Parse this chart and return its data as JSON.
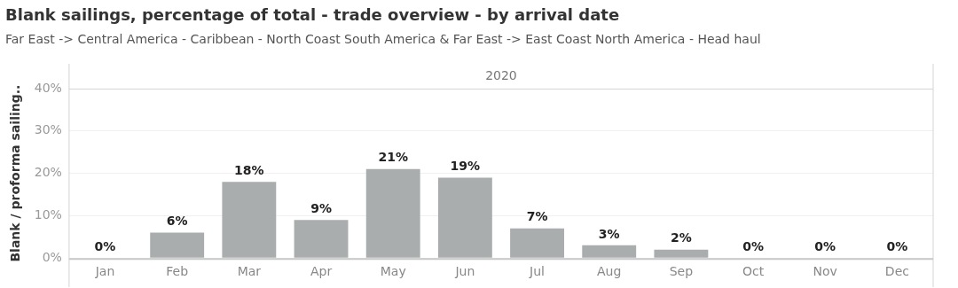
{
  "chart_data": {
    "type": "bar",
    "title": "Blank sailings, percentage of total - trade overview - by arrival date",
    "subtitle": "Far East -> Central America - Caribbean - North Coast South America & Far East -> East Coast North America - Head haul",
    "annotations": [
      "2020"
    ],
    "ylabel": "Blank / proforma sailing..",
    "categories": [
      "Jan",
      "Feb",
      "Mar",
      "Apr",
      "May",
      "Jun",
      "Jul",
      "Aug",
      "Sep",
      "Oct",
      "Nov",
      "Dec"
    ],
    "values": [
      0,
      6,
      18,
      9,
      21,
      19,
      7,
      3,
      2,
      0,
      0,
      0
    ],
    "value_labels": [
      "0%",
      "6%",
      "18%",
      "9%",
      "21%",
      "19%",
      "7%",
      "3%",
      "2%",
      "0%",
      "0%",
      "0%"
    ],
    "color": "#a9adad",
    "ylim": [
      0,
      40
    ],
    "yticks": [
      {
        "value": 0,
        "label": "0%"
      },
      {
        "value": 10,
        "label": "10%"
      },
      {
        "value": 20,
        "label": "20%"
      },
      {
        "value": 30,
        "label": "30%"
      },
      {
        "value": 40,
        "label": "40%"
      }
    ],
    "grid": "y",
    "legend": false
  }
}
